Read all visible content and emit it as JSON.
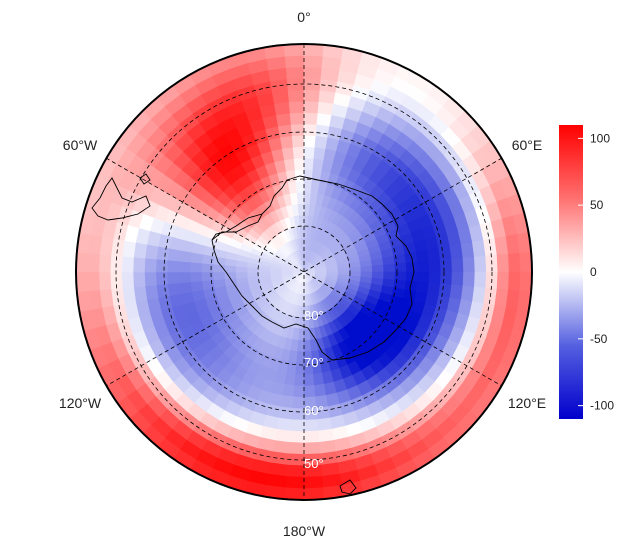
{
  "map": {
    "projection": "south-polar-stereographic",
    "longitude_labels": {
      "top": "0°",
      "upper_left": "60°W",
      "upper_right": "60°E",
      "lower_left": "120°W",
      "lower_right": "120°E",
      "bottom": "180°W"
    },
    "latitude_labels": [
      "80°",
      "70°",
      "60°",
      "50°"
    ]
  },
  "colorbar": {
    "min": -110,
    "max": 110,
    "ticks": [
      {
        "value": 100,
        "label": "100"
      },
      {
        "value": 50,
        "label": "50"
      },
      {
        "value": 0,
        "label": "0"
      },
      {
        "value": -50,
        "label": "-50"
      },
      {
        "value": -100,
        "label": "-100"
      }
    ],
    "colors": {
      "low": "#0000cc",
      "mid": "#ffffff",
      "high": "#ff0000"
    }
  },
  "chart_data": {
    "type": "heatmap",
    "title": "",
    "value_range": [
      -110,
      110
    ],
    "description_points": [
      {
        "lon": -40,
        "lat": -62,
        "value": 100
      },
      {
        "lon": -20,
        "lat": -55,
        "value": 60
      },
      {
        "lon": 0,
        "lat": -45,
        "value": 10
      },
      {
        "lon": 40,
        "lat": -60,
        "value": -40
      },
      {
        "lon": 90,
        "lat": -60,
        "value": -20
      },
      {
        "lon": 140,
        "lat": -68,
        "value": -100
      },
      {
        "lon": 180,
        "lat": -65,
        "value": -80
      },
      {
        "lon": -110,
        "lat": -60,
        "value": -40
      },
      {
        "lon": 180,
        "lat": -45,
        "value": 80
      },
      {
        "lon": 0,
        "lat": -80,
        "value": -5
      }
    ]
  }
}
